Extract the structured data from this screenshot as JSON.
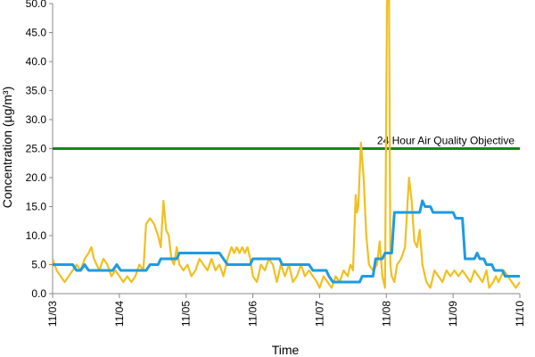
{
  "chart_data": {
    "type": "line",
    "xlabel": "Time",
    "ylabel": "Concentration (µg/m³)",
    "ylim": [
      0,
      50
    ],
    "yticks": [
      "0.0",
      "5.0",
      "10.0",
      "15.0",
      "20.0",
      "25.0",
      "30.0",
      "35.0",
      "40.0",
      "45.0",
      "50.0"
    ],
    "xlim": [
      0,
      7
    ],
    "xticks": [
      "11/03",
      "11/04",
      "11/05",
      "11/06",
      "11/07",
      "11/08",
      "11/09",
      "11/10"
    ],
    "grid": false,
    "legend": "none",
    "reference_line": {
      "label": "24 Hour Air Quality Objective",
      "value": 25,
      "color": "#138a13"
    },
    "series": [
      {
        "color": "#f0c020",
        "points": [
          [
            0.0,
            6
          ],
          [
            0.06,
            4
          ],
          [
            0.12,
            3
          ],
          [
            0.18,
            2
          ],
          [
            0.24,
            3
          ],
          [
            0.3,
            4
          ],
          [
            0.36,
            5
          ],
          [
            0.42,
            4
          ],
          [
            0.48,
            6
          ],
          [
            0.54,
            7
          ],
          [
            0.58,
            8
          ],
          [
            0.62,
            6
          ],
          [
            0.66,
            5
          ],
          [
            0.7,
            4
          ],
          [
            0.76,
            6
          ],
          [
            0.82,
            5
          ],
          [
            0.88,
            3
          ],
          [
            0.94,
            4
          ],
          [
            1.0,
            3
          ],
          [
            1.06,
            2
          ],
          [
            1.12,
            3
          ],
          [
            1.18,
            2
          ],
          [
            1.24,
            3
          ],
          [
            1.3,
            5
          ],
          [
            1.36,
            4
          ],
          [
            1.4,
            12
          ],
          [
            1.46,
            13
          ],
          [
            1.52,
            12
          ],
          [
            1.58,
            10
          ],
          [
            1.62,
            8
          ],
          [
            1.66,
            16
          ],
          [
            1.7,
            11
          ],
          [
            1.74,
            10
          ],
          [
            1.78,
            6
          ],
          [
            1.82,
            5
          ],
          [
            1.86,
            8
          ],
          [
            1.9,
            5
          ],
          [
            1.96,
            4
          ],
          [
            2.02,
            5
          ],
          [
            2.08,
            3
          ],
          [
            2.14,
            4
          ],
          [
            2.2,
            6
          ],
          [
            2.26,
            5
          ],
          [
            2.32,
            4
          ],
          [
            2.38,
            6
          ],
          [
            2.44,
            4
          ],
          [
            2.5,
            5
          ],
          [
            2.56,
            3
          ],
          [
            2.62,
            6
          ],
          [
            2.68,
            8
          ],
          [
            2.72,
            7
          ],
          [
            2.76,
            8
          ],
          [
            2.8,
            7
          ],
          [
            2.84,
            8
          ],
          [
            2.88,
            7
          ],
          [
            2.92,
            8
          ],
          [
            2.96,
            6
          ],
          [
            3.0,
            3
          ],
          [
            3.06,
            2
          ],
          [
            3.12,
            5
          ],
          [
            3.18,
            4
          ],
          [
            3.24,
            6
          ],
          [
            3.3,
            5
          ],
          [
            3.36,
            2
          ],
          [
            3.42,
            5
          ],
          [
            3.48,
            3
          ],
          [
            3.54,
            5
          ],
          [
            3.6,
            2
          ],
          [
            3.66,
            3
          ],
          [
            3.72,
            5
          ],
          [
            3.78,
            3
          ],
          [
            3.84,
            4
          ],
          [
            3.9,
            3
          ],
          [
            3.96,
            2
          ],
          [
            4.0,
            1
          ],
          [
            4.06,
            3
          ],
          [
            4.12,
            2
          ],
          [
            4.18,
            1
          ],
          [
            4.24,
            3
          ],
          [
            4.3,
            2
          ],
          [
            4.36,
            4
          ],
          [
            4.42,
            3
          ],
          [
            4.46,
            5
          ],
          [
            4.5,
            4
          ],
          [
            4.54,
            17
          ],
          [
            4.56,
            14
          ],
          [
            4.58,
            15
          ],
          [
            4.62,
            26
          ],
          [
            4.66,
            20
          ],
          [
            4.7,
            10
          ],
          [
            4.74,
            5
          ],
          [
            4.8,
            4
          ],
          [
            4.86,
            5
          ],
          [
            4.9,
            9
          ],
          [
            4.94,
            3
          ],
          [
            4.98,
            1
          ],
          [
            5.01,
            50
          ],
          [
            5.02,
            52
          ],
          [
            5.04,
            51
          ],
          [
            5.06,
            5
          ],
          [
            5.08,
            3
          ],
          [
            5.12,
            2
          ],
          [
            5.16,
            5
          ],
          [
            5.22,
            6
          ],
          [
            5.28,
            8
          ],
          [
            5.34,
            20
          ],
          [
            5.38,
            16
          ],
          [
            5.42,
            9
          ],
          [
            5.46,
            8
          ],
          [
            5.5,
            11
          ],
          [
            5.54,
            5
          ],
          [
            5.6,
            2
          ],
          [
            5.66,
            1
          ],
          [
            5.72,
            4
          ],
          [
            5.78,
            3
          ],
          [
            5.84,
            2
          ],
          [
            5.9,
            4
          ],
          [
            5.96,
            3
          ],
          [
            6.02,
            4
          ],
          [
            6.08,
            3
          ],
          [
            6.14,
            4
          ],
          [
            6.2,
            3
          ],
          [
            6.26,
            2
          ],
          [
            6.32,
            4
          ],
          [
            6.38,
            3
          ],
          [
            6.44,
            2
          ],
          [
            6.5,
            4
          ],
          [
            6.54,
            1
          ],
          [
            6.6,
            2
          ],
          [
            6.64,
            3
          ],
          [
            6.68,
            2
          ],
          [
            6.72,
            3
          ],
          [
            6.76,
            4
          ],
          [
            6.82,
            3
          ],
          [
            6.88,
            2
          ],
          [
            6.94,
            1
          ],
          [
            7.0,
            2
          ]
        ]
      },
      {
        "color": "#1e9be0",
        "points": [
          [
            0.0,
            5
          ],
          [
            0.3,
            5
          ],
          [
            0.36,
            4
          ],
          [
            0.42,
            4
          ],
          [
            0.48,
            5
          ],
          [
            0.54,
            4
          ],
          [
            0.9,
            4
          ],
          [
            0.96,
            5
          ],
          [
            1.02,
            4
          ],
          [
            1.4,
            4
          ],
          [
            1.46,
            5
          ],
          [
            1.58,
            5
          ],
          [
            1.62,
            6
          ],
          [
            1.86,
            6
          ],
          [
            1.9,
            7
          ],
          [
            2.5,
            7
          ],
          [
            2.56,
            6
          ],
          [
            2.62,
            5
          ],
          [
            2.96,
            5
          ],
          [
            3.0,
            6
          ],
          [
            3.4,
            6
          ],
          [
            3.44,
            5
          ],
          [
            3.84,
            5
          ],
          [
            3.9,
            4
          ],
          [
            4.1,
            4
          ],
          [
            4.14,
            3
          ],
          [
            4.2,
            2
          ],
          [
            4.6,
            2
          ],
          [
            4.64,
            3
          ],
          [
            4.8,
            3
          ],
          [
            4.84,
            6
          ],
          [
            4.94,
            6
          ],
          [
            4.98,
            7
          ],
          [
            5.08,
            7
          ],
          [
            5.12,
            14
          ],
          [
            5.5,
            14
          ],
          [
            5.54,
            16
          ],
          [
            5.58,
            15
          ],
          [
            5.66,
            15
          ],
          [
            5.7,
            14
          ],
          [
            6.0,
            14
          ],
          [
            6.04,
            13
          ],
          [
            6.14,
            13
          ],
          [
            6.18,
            6
          ],
          [
            6.32,
            6
          ],
          [
            6.36,
            7
          ],
          [
            6.4,
            6
          ],
          [
            6.46,
            6
          ],
          [
            6.5,
            5
          ],
          [
            6.58,
            5
          ],
          [
            6.62,
            4
          ],
          [
            6.74,
            4
          ],
          [
            6.78,
            3
          ],
          [
            7.0,
            3
          ]
        ]
      }
    ]
  }
}
